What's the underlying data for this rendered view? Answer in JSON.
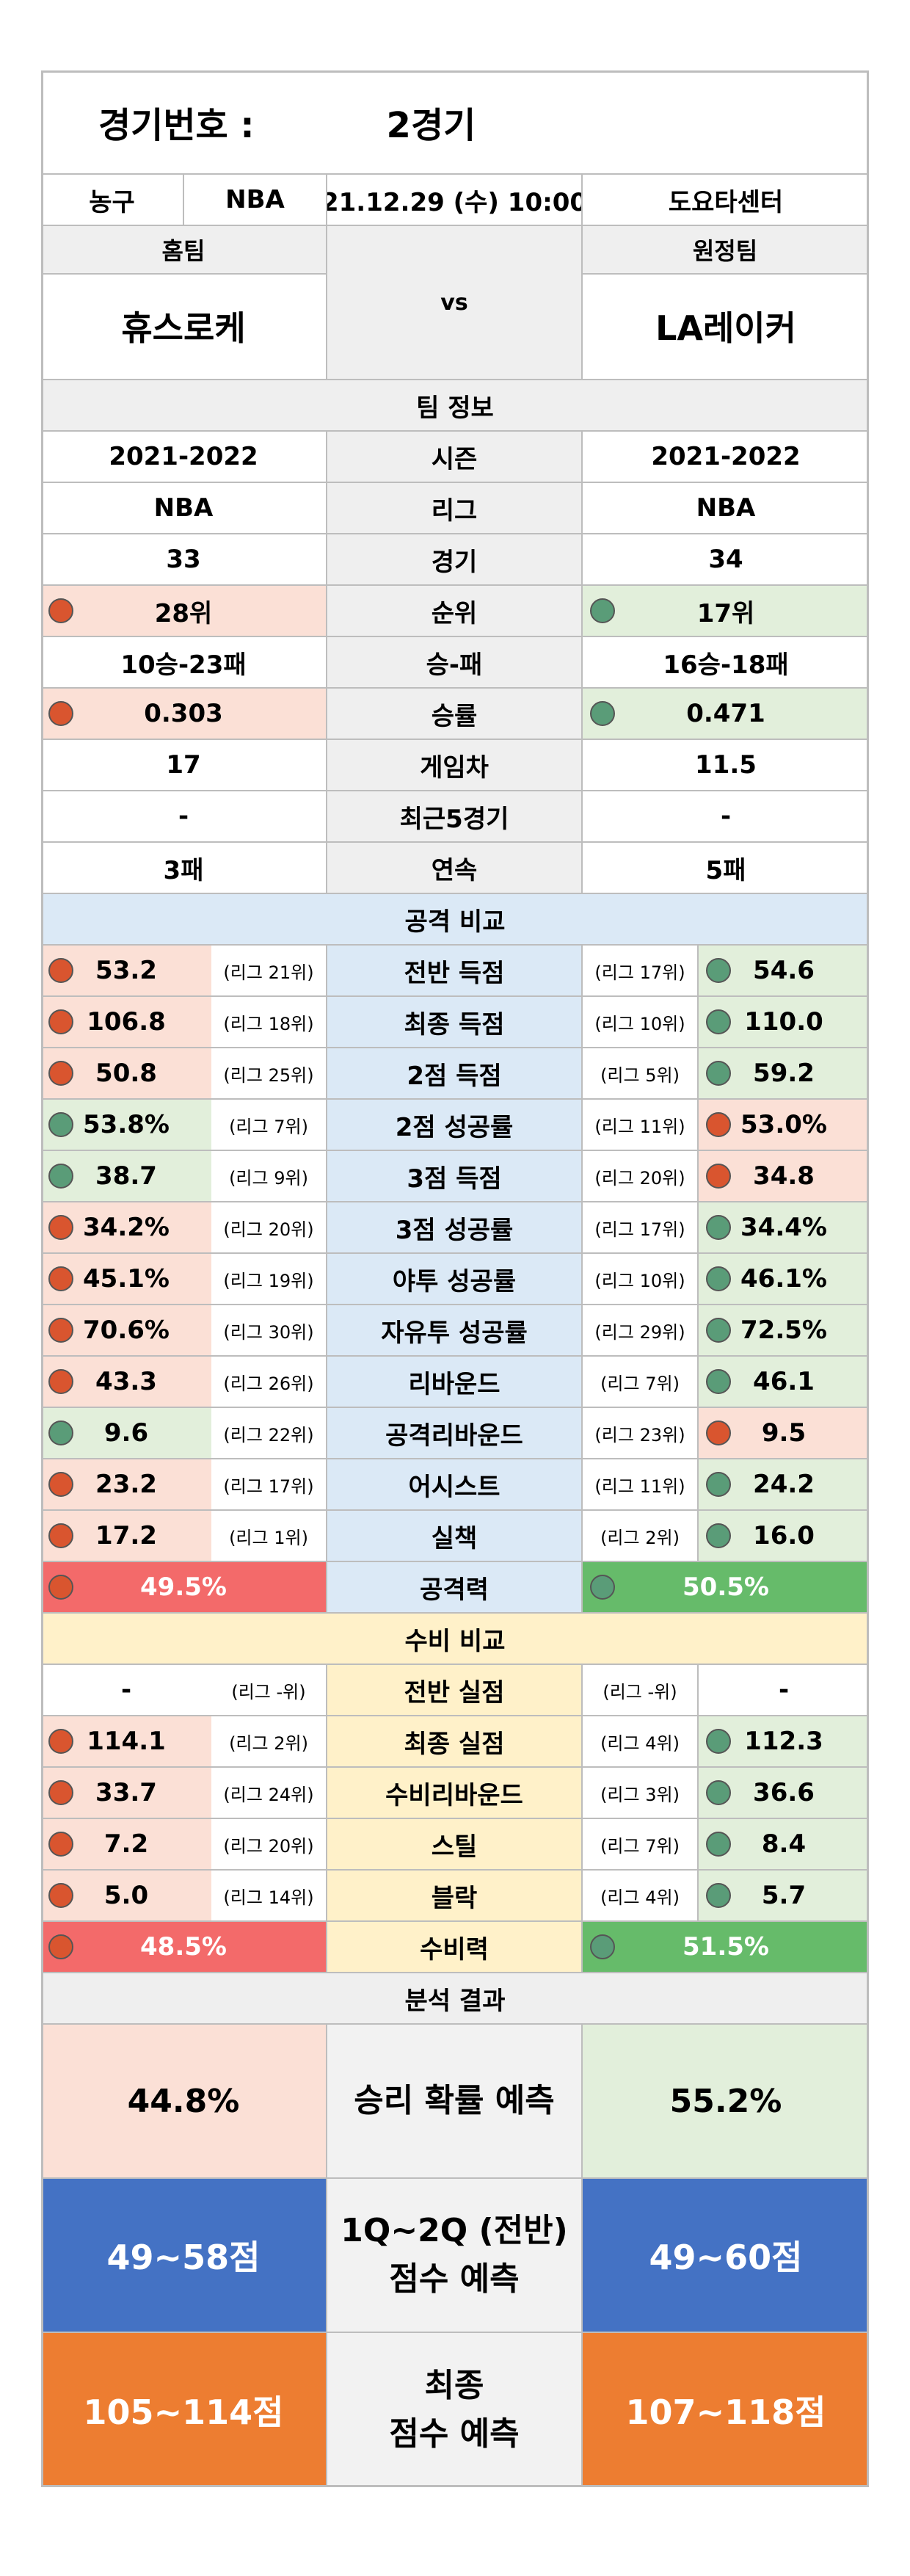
{
  "header": {
    "label": "경기번호 :",
    "value": "2경기"
  },
  "meta": {
    "sport": "농구",
    "league": "NBA",
    "datetime": "21.12.29 (수) 10:00",
    "venue": "도요타센터"
  },
  "teams": {
    "home_label": "홈팀",
    "away_label": "원정팀",
    "vs": "vs",
    "home": "휴스로케",
    "away": "LA레이커"
  },
  "team_info": {
    "title": "팀 정보",
    "rows": [
      {
        "label": "시즌",
        "home": "2021-2022",
        "away": "2021-2022"
      },
      {
        "label": "리그",
        "home": "NBA",
        "away": "NBA"
      },
      {
        "label": "경기",
        "home": "33",
        "away": "34"
      },
      {
        "label": "순위",
        "home": "28위",
        "away": "17위"
      },
      {
        "label": "승-패",
        "home": "10승-23패",
        "away": "16승-18패"
      },
      {
        "label": "승률",
        "home": "0.303",
        "away": "0.471"
      },
      {
        "label": "게임차",
        "home": "17",
        "away": "11.5"
      },
      {
        "label": "최근5경기",
        "home": "-",
        "away": "-"
      },
      {
        "label": "연속",
        "home": "3패",
        "away": "5패"
      }
    ]
  },
  "attack": {
    "title": "공격 비교",
    "rows": [
      {
        "label": "전반 득점",
        "home": "53.2",
        "home_rank": "(리그 21위)",
        "away": "54.6",
        "away_rank": "(리그 17위)"
      },
      {
        "label": "최종 득점",
        "home": "106.8",
        "home_rank": "(리그 18위)",
        "away": "110.0",
        "away_rank": "(리그 10위)"
      },
      {
        "label": "2점 득점",
        "home": "50.8",
        "home_rank": "(리그 25위)",
        "away": "59.2",
        "away_rank": "(리그 5위)"
      },
      {
        "label": "2점 성공률",
        "home": "53.8%",
        "home_rank": "(리그 7위)",
        "away": "53.0%",
        "away_rank": "(리그 11위)"
      },
      {
        "label": "3점 득점",
        "home": "38.7",
        "home_rank": "(리그 9위)",
        "away": "34.8",
        "away_rank": "(리그 20위)"
      },
      {
        "label": "3점 성공률",
        "home": "34.2%",
        "home_rank": "(리그 20위)",
        "away": "34.4%",
        "away_rank": "(리그 17위)"
      },
      {
        "label": "야투 성공률",
        "home": "45.1%",
        "home_rank": "(리그 19위)",
        "away": "46.1%",
        "away_rank": "(리그 10위)"
      },
      {
        "label": "자유투 성공률",
        "home": "70.6%",
        "home_rank": "(리그 30위)",
        "away": "72.5%",
        "away_rank": "(리그 29위)"
      },
      {
        "label": "리바운드",
        "home": "43.3",
        "home_rank": "(리그 26위)",
        "away": "46.1",
        "away_rank": "(리그 7위)"
      },
      {
        "label": "공격리바운드",
        "home": "9.6",
        "home_rank": "(리그 22위)",
        "away": "9.5",
        "away_rank": "(리그 23위)"
      },
      {
        "label": "어시스트",
        "home": "23.2",
        "home_rank": "(리그 17위)",
        "away": "24.2",
        "away_rank": "(리그 11위)"
      },
      {
        "label": "실책",
        "home": "17.2",
        "home_rank": "(리그 1위)",
        "away": "16.0",
        "away_rank": "(리그 2위)"
      }
    ],
    "power_label": "공격력",
    "home_power": "49.5%",
    "away_power": "50.5%"
  },
  "defense": {
    "title": "수비 비교",
    "rows": [
      {
        "label": "전반 실점",
        "home": "-",
        "home_rank": "(리그 -위)",
        "away": "-",
        "away_rank": "(리그 -위)"
      },
      {
        "label": "최종 실점",
        "home": "114.1",
        "home_rank": "(리그 2위)",
        "away": "112.3",
        "away_rank": "(리그 4위)"
      },
      {
        "label": "수비리바운드",
        "home": "33.7",
        "home_rank": "(리그 24위)",
        "away": "36.6",
        "away_rank": "(리그 3위)"
      },
      {
        "label": "스틸",
        "home": "7.2",
        "home_rank": "(리그 20위)",
        "away": "8.4",
        "away_rank": "(리그 7위)"
      },
      {
        "label": "블락",
        "home": "5.0",
        "home_rank": "(리그 14위)",
        "away": "5.7",
        "away_rank": "(리그 4위)"
      }
    ],
    "power_label": "수비력",
    "home_power": "48.5%",
    "away_power": "51.5%"
  },
  "analysis": {
    "title": "분석 결과",
    "win_label": "승리 확률 예측",
    "home_win": "44.8%",
    "away_win": "55.2%",
    "half_label_1": "1Q~2Q (전반)",
    "half_label_2": "점수 예측",
    "home_half": "49~58점",
    "away_half": "49~60점",
    "final_label_1": "최종",
    "final_label_2": "점수 예측",
    "home_final": "105~114점",
    "away_final": "107~118점"
  }
}
